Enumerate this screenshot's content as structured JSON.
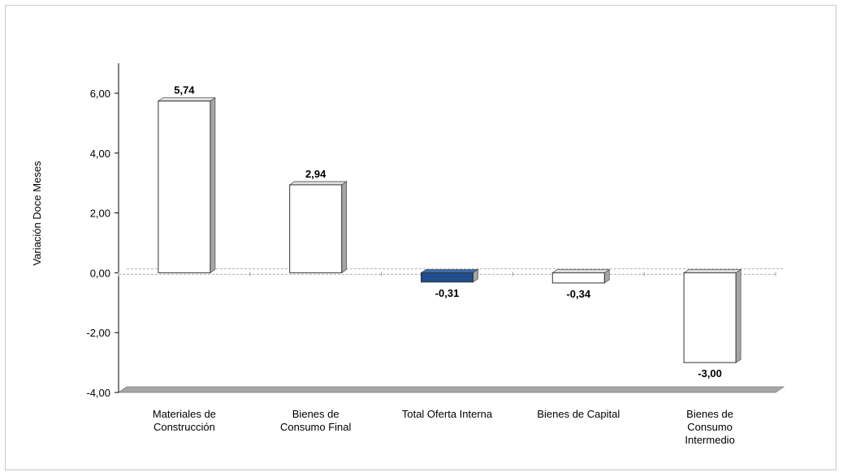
{
  "chart_data": {
    "type": "bar",
    "title": "",
    "xlabel": "",
    "ylabel": "Variación Doce Meses",
    "categories": [
      [
        "Materiales de",
        "Construcción"
      ],
      [
        "Bienes de",
        "Consumo Final"
      ],
      [
        "Total Oferta Interna"
      ],
      [
        "Bienes de Capital"
      ],
      [
        "Bienes de",
        "Consumo",
        "Intermedio"
      ]
    ],
    "values": [
      5.74,
      2.94,
      -0.31,
      -0.34,
      -3.0
    ],
    "data_labels": [
      "5,74",
      "2,94",
      "-0,31",
      "-0,34",
      "-3,00"
    ],
    "highlight_index": 2,
    "ylim": [
      -4,
      6
    ],
    "yticks": [
      6,
      4,
      2,
      0,
      -2,
      -4
    ],
    "ytick_labels": [
      "6,00",
      "4,00",
      "2,00",
      "0,00",
      "-2,00",
      "-4,00"
    ],
    "colors": {
      "bar_fill": "#ffffff",
      "bar_highlight": "#1f4e8c",
      "bar_side": "#a6a6a6",
      "axis": "#000000",
      "floor": "#a6a6a6",
      "zero_line": "#b0b0b0"
    },
    "grid": false,
    "legend": "none"
  }
}
